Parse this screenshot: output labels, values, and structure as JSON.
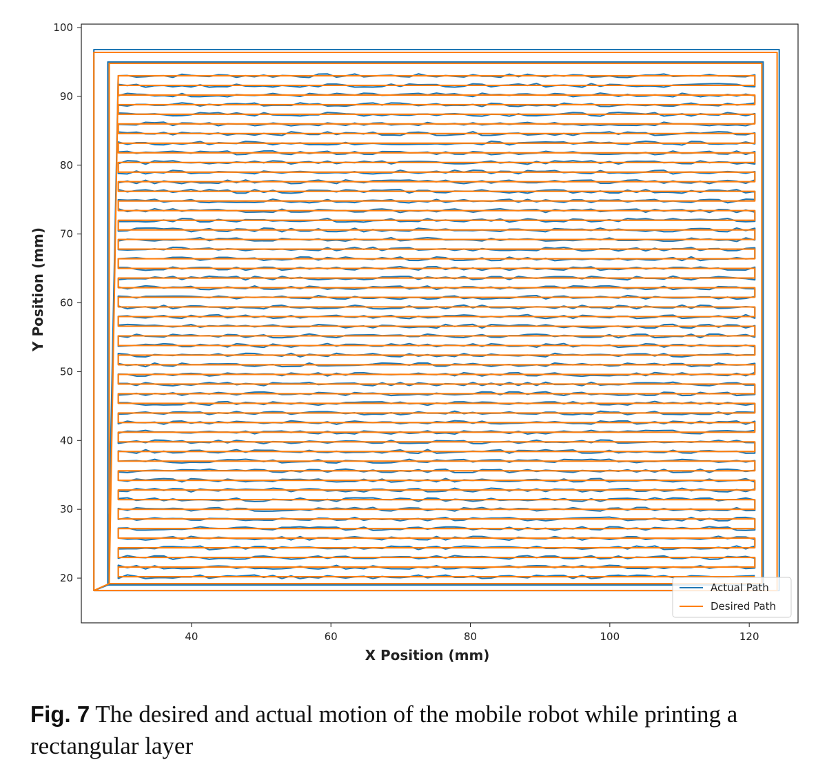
{
  "chart_data": {
    "type": "line",
    "xlabel": "X Position (mm)",
    "ylabel": "Y Position (mm)",
    "xlim": [
      24.2,
      127
    ],
    "ylim": [
      13.5,
      100.5
    ],
    "xticks": [
      40,
      60,
      80,
      100,
      120
    ],
    "yticks": [
      20,
      30,
      40,
      50,
      60,
      70,
      80,
      90,
      100
    ],
    "grid": false,
    "legend_position": "lower-right",
    "series": [
      {
        "name": "Actual Path",
        "color": "#1f77b4",
        "description_points": {
          "outer_rectangle": [
            [
              26,
              18.2
            ],
            [
              26,
              96.8
            ],
            [
              124.3,
              96.8
            ],
            [
              124.3,
              18.2
            ],
            [
              26,
              18.2
            ]
          ],
          "second_rectangle": [
            [
              28,
              19
            ],
            [
              28,
              95
            ],
            [
              122,
              95
            ],
            [
              122,
              19
            ],
            [
              28,
              19
            ]
          ],
          "raster_x_range": [
            29.5,
            120.8
          ],
          "raster_y_range": [
            19.5,
            93
          ],
          "raster_pass_spacing": 1.4
        }
      },
      {
        "name": "Desired Path",
        "color": "#ff7f0e",
        "description_points": {
          "outer_rectangle": [
            [
              26,
              18.2
            ],
            [
              26,
              96.4
            ],
            [
              124,
              96.4
            ],
            [
              124,
              18.2
            ],
            [
              26,
              18.2
            ]
          ],
          "second_rectangle": [
            [
              28.2,
              19.2
            ],
            [
              28.2,
              94.8
            ],
            [
              121.8,
              94.8
            ],
            [
              121.8,
              19.2
            ],
            [
              28.2,
              19.2
            ]
          ],
          "raster_x_range": [
            29.5,
            120.8
          ],
          "raster_y_range": [
            19.5,
            93
          ],
          "raster_pass_spacing": 1.4
        }
      }
    ]
  },
  "caption": {
    "number": "Fig. 7",
    "text": "The desired and actual motion of the mobile robot while printing a rectangular layer"
  }
}
